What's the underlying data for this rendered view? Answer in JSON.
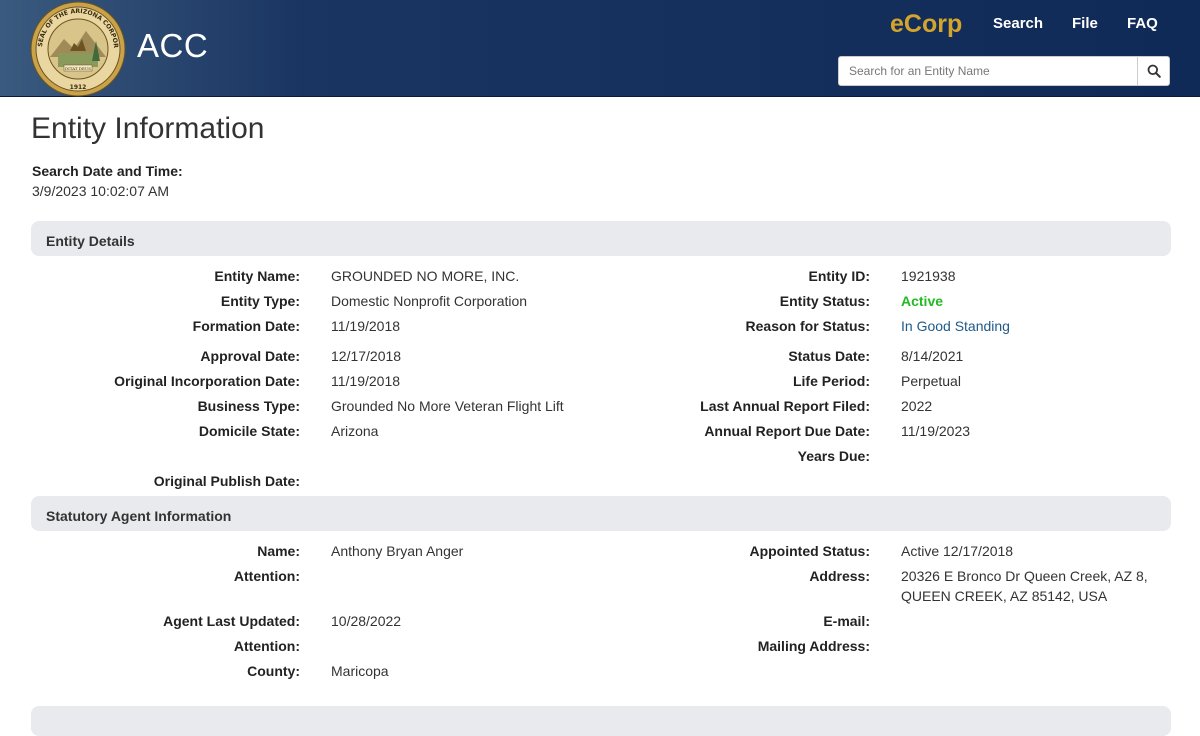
{
  "header": {
    "brand": "ACC",
    "ecorp": "eCorp",
    "nav": {
      "search": "Search",
      "file": "File",
      "faq": "FAQ"
    },
    "search": {
      "placeholder": "Search for an Entity Name",
      "value": ""
    },
    "seal": {
      "outer_text": "SEAL OF THE ARIZONA CORPORATION COMMISSION",
      "motto": "DITAT DEUS",
      "year": "1912"
    }
  },
  "page": {
    "title": "Entity Information",
    "search_date_label": "Search Date and Time:",
    "search_date_value": "3/9/2023 10:02:07 AM"
  },
  "entity_details": {
    "heading": "Entity Details",
    "left": [
      {
        "label": "Entity Name:",
        "value": "GROUNDED NO MORE, INC."
      },
      {
        "label": "Entity Type:",
        "value": "Domestic Nonprofit Corporation"
      },
      {
        "label": "Formation Date:",
        "value": "11/19/2018"
      },
      {
        "label": "Approval Date:",
        "value": "12/17/2018"
      },
      {
        "label": "Original Incorporation Date:",
        "value": "11/19/2018"
      },
      {
        "label": "Business Type:",
        "value": "Grounded No More Veteran Flight Lift"
      },
      {
        "label": "Domicile State:",
        "value": "Arizona"
      },
      {
        "label": "Original Publish Date:",
        "value": ""
      }
    ],
    "right": [
      {
        "label": "Entity ID:",
        "value": "1921938"
      },
      {
        "label": "Entity Status:",
        "value": "Active"
      },
      {
        "label": "Reason for Status:",
        "value": "In Good Standing"
      },
      {
        "label": "Status Date:",
        "value": "8/14/2021"
      },
      {
        "label": "Life Period:",
        "value": "Perpetual"
      },
      {
        "label": "Last Annual Report Filed:",
        "value": "2022"
      },
      {
        "label": "Annual Report Due Date:",
        "value": "11/19/2023"
      },
      {
        "label": "Years Due:",
        "value": ""
      }
    ],
    "status_color": "#22bb22"
  },
  "statutory_agent": {
    "heading": "Statutory Agent Information",
    "left": [
      {
        "label": "Name:",
        "value": "Anthony Bryan Anger"
      },
      {
        "label": "Attention:",
        "value": ""
      },
      {
        "label": "Agent Last Updated:",
        "value": "10/28/2022"
      },
      {
        "label": "Attention:",
        "value": ""
      },
      {
        "label": "County:",
        "value": "Maricopa"
      }
    ],
    "right": [
      {
        "label": "Appointed Status:",
        "value": "Active 12/17/2018"
      },
      {
        "label": "Address:",
        "value_line1": "20326 E Bronco Dr Queen Creek, AZ 8,",
        "value_line2": "QUEEN CREEK, AZ 85142, USA"
      },
      {
        "label": "E-mail:",
        "value": ""
      },
      {
        "label": "Mailing Address:",
        "value": ""
      }
    ]
  },
  "icons": {
    "search": "search-icon",
    "seal": "seal-logo"
  },
  "colors": {
    "header_bg": "#102a58",
    "ecorp": "#d4a52a",
    "link": "#1f5a8a",
    "section_bg": "#e8eaed"
  }
}
